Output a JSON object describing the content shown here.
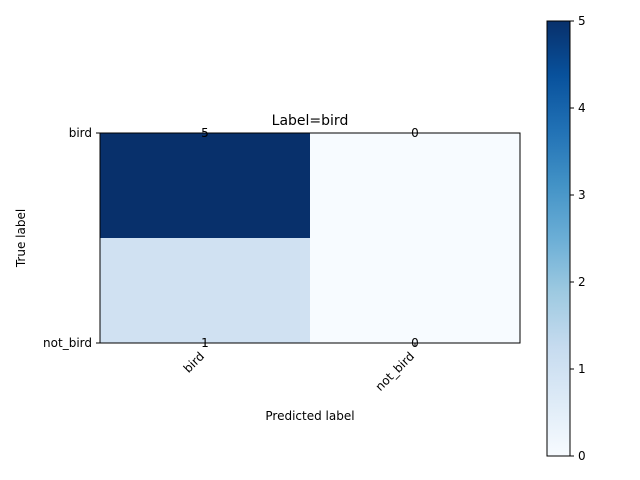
{
  "chart_data": {
    "type": "heatmap",
    "title": "Label=bird",
    "xlabel": "Predicted label",
    "ylabel": "True label",
    "x_categories": [
      "bird",
      "not_bird"
    ],
    "y_categories": [
      "bird",
      "not_bird"
    ],
    "values": [
      [
        5,
        0
      ],
      [
        1,
        0
      ]
    ],
    "cell_labels": [
      [
        "5",
        "0"
      ],
      [
        "1",
        "0"
      ]
    ],
    "colormap": "Blues",
    "color_range": [
      0,
      5
    ],
    "colorbar_ticks": [
      "0",
      "1",
      "2",
      "3",
      "4",
      "5"
    ],
    "colorbar_tick_values": [
      0,
      1,
      2,
      3,
      4,
      5
    ],
    "colors": {
      "low": "#f7fbff",
      "one": "#d0e1f2",
      "high": "#08306b",
      "text_dark": "#000000",
      "text_light": "#ffffff"
    }
  }
}
